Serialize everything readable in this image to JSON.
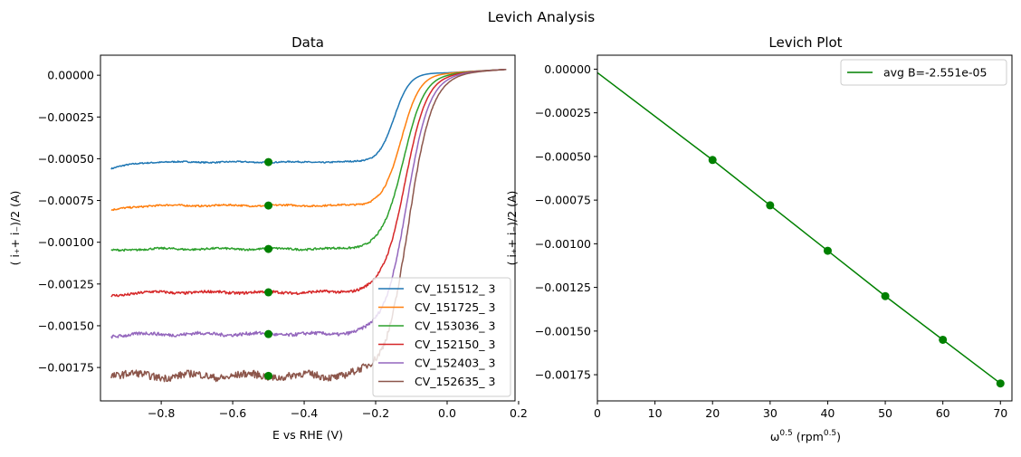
{
  "figure": {
    "suptitle": "Levich Analysis"
  },
  "chart_data": [
    {
      "type": "line",
      "title": "Data",
      "xlabel": "E vs RHE (V)",
      "ylabel": "( i₊+ i₋)/2 (A)",
      "xlim": [
        -0.97,
        0.19
      ],
      "ylim": [
        -0.00195,
        0.00012
      ],
      "xticks": [
        -0.8,
        -0.6,
        -0.4,
        -0.2,
        0.0,
        0.2
      ],
      "xtick_labels": [
        "−0.8",
        "−0.6",
        "−0.4",
        "−0.2",
        "0.0",
        "0.2"
      ],
      "yticks": [
        0.0,
        -0.00025,
        -0.0005,
        -0.00075,
        -0.001,
        -0.00125,
        -0.0015,
        -0.00175
      ],
      "ytick_labels": [
        "0.00000",
        "−0.00025",
        "−0.00050",
        "−0.00075",
        "−0.00100",
        "−0.00125",
        "−0.00150",
        "−0.00175"
      ],
      "legend_position": "lower-right",
      "x_range": [
        -0.94,
        0.165
      ],
      "series": [
        {
          "name": "CV_151512_ 3",
          "color": "#1f77b4",
          "plateau": -0.00052,
          "start": -0.00056,
          "half_wave": -0.148,
          "width": 0.022,
          "noise": 4e-06
        },
        {
          "name": "CV_151725_ 3",
          "color": "#ff7f0e",
          "plateau": -0.00078,
          "start": -0.00081,
          "half_wave": -0.128,
          "width": 0.026,
          "noise": 5e-06
        },
        {
          "name": "CV_153036_ 3",
          "color": "#2ca02c",
          "plateau": -0.00104,
          "start": -0.00105,
          "half_wave": -0.123,
          "width": 0.03,
          "noise": 6e-06
        },
        {
          "name": "CV_152150_ 3",
          "color": "#d62728",
          "plateau": -0.0013,
          "start": -0.00132,
          "half_wave": -0.118,
          "width": 0.031,
          "noise": 8e-06
        },
        {
          "name": "CV_152403_ 3",
          "color": "#9467bd",
          "plateau": -0.00155,
          "start": -0.00156,
          "half_wave": -0.113,
          "width": 0.032,
          "noise": 1e-05
        },
        {
          "name": "CV_152635_ 3",
          "color": "#8c564b",
          "plateau": -0.0018,
          "start": -0.00179,
          "half_wave": -0.108,
          "width": 0.033,
          "noise": 2.2e-05
        }
      ],
      "markers": {
        "color": "#008000",
        "x": -0.5,
        "y": [
          -0.00052,
          -0.00078,
          -0.00104,
          -0.0013,
          -0.00155,
          -0.0018
        ]
      }
    },
    {
      "type": "line",
      "title": "Levich Plot",
      "xlabel_main": "ω",
      "xlabel_sup": "0.5",
      "xlabel_unit": "(rpm",
      "xlabel_unit_sup": "0.5",
      "xlabel_close": ")",
      "ylabel": "( i₊+ i₋)/2 (A)",
      "xlim": [
        0,
        72
      ],
      "ylim": [
        -0.0019,
        8e-05
      ],
      "xticks": [
        0,
        10,
        20,
        30,
        40,
        50,
        60,
        70
      ],
      "xtick_labels": [
        "0",
        "10",
        "20",
        "30",
        "40",
        "50",
        "60",
        "70"
      ],
      "yticks": [
        0.0,
        -0.00025,
        -0.0005,
        -0.00075,
        -0.001,
        -0.00125,
        -0.0015,
        -0.00175
      ],
      "ytick_labels": [
        "0.00000",
        "−0.00025",
        "−0.00050",
        "−0.00075",
        "−0.00100",
        "−0.00125",
        "−0.00150",
        "−0.00175"
      ],
      "legend_position": "upper-right",
      "points": {
        "x": [
          20,
          30,
          40,
          50,
          60,
          70
        ],
        "y": [
          -0.00052,
          -0.00078,
          -0.00104,
          -0.0013,
          -0.00155,
          -0.0018
        ],
        "color": "#008000"
      },
      "fit": {
        "name": "avg B=-2.551e-05",
        "color": "#008000",
        "x": [
          0,
          20,
          30,
          40,
          50,
          60,
          70
        ],
        "y": [
          -2e-05,
          -0.00052,
          -0.00078,
          -0.00104,
          -0.0013,
          -0.00155,
          -0.0018
        ]
      }
    }
  ]
}
